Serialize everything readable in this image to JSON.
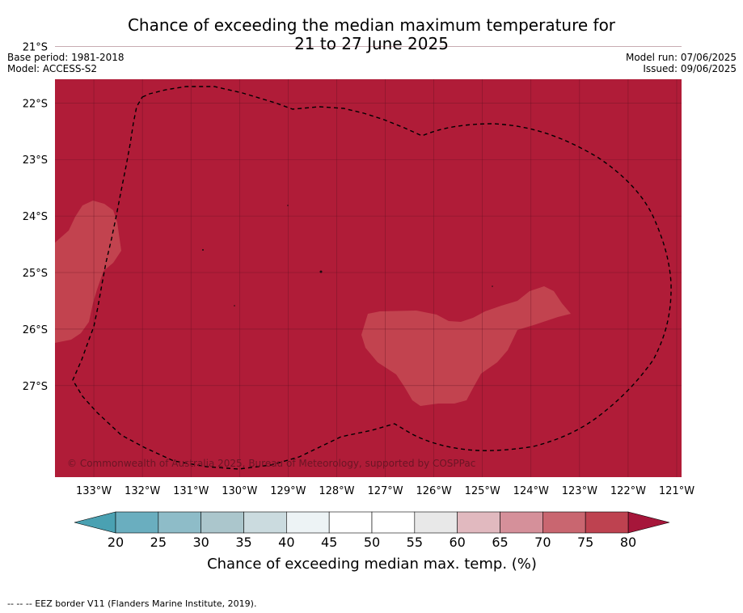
{
  "title": {
    "line1": "Chance of exceeding the median maximum temperature for",
    "line2": "21 to 27 June 2025"
  },
  "info_left": {
    "base_period": "Base period: 1981-2018",
    "model": "Model: ACCESS-S2"
  },
  "info_right": {
    "model_run": "Model run: 07/06/2025",
    "issued": "Issued: 09/06/2025"
  },
  "map": {
    "copyright": "© Commonwealth of Australia 2025, Bureau of Meteorology, supported by COSPPac",
    "longitude_labels": [
      "133°W",
      "132°W",
      "131°W",
      "130°W",
      "129°W",
      "128°W",
      "127°W",
      "126°W",
      "125°W",
      "124°W",
      "123°W",
      "122°W",
      "121°W"
    ],
    "latitude_labels": [
      "21°S",
      "22°S",
      "23°S",
      "24°S",
      "25°S",
      "26°S",
      "27°S"
    ],
    "longitude_values": [
      -133,
      -132,
      -131,
      -130,
      -129,
      -128,
      -127,
      -126,
      -125,
      -124,
      -123,
      -122,
      -121
    ],
    "latitude_values": [
      -21,
      -22,
      -23,
      -24,
      -25,
      -26,
      -27
    ],
    "lon_range": [
      -133.8,
      -120.9
    ],
    "lat_range": [
      -21.58,
      -28.62
    ],
    "background_class_color": "#b01c38",
    "patch_class_color": "#c2434f",
    "eez_line_style": "dashed"
  },
  "colorbar": {
    "ticks": [
      "20",
      "25",
      "30",
      "35",
      "40",
      "45",
      "50",
      "55",
      "60",
      "65",
      "70",
      "75",
      "80"
    ],
    "colors": [
      "#6aaebf",
      "#8ebcc8",
      "#abc6cc",
      "#cbdbdf",
      "#edf3f5",
      "#ffffff",
      "#ffffff",
      "#e8e8e8",
      "#e1b9bf",
      "#d5909a",
      "#c96670",
      "#be4250"
    ],
    "under_color": "#4aa1b2",
    "over_color": "#a6163a",
    "label": "Chance of exceeding median max. temp. (%)"
  },
  "footnote": "--  --  -- EEZ border V11 (Flanders Marine Institute, 2019)."
}
